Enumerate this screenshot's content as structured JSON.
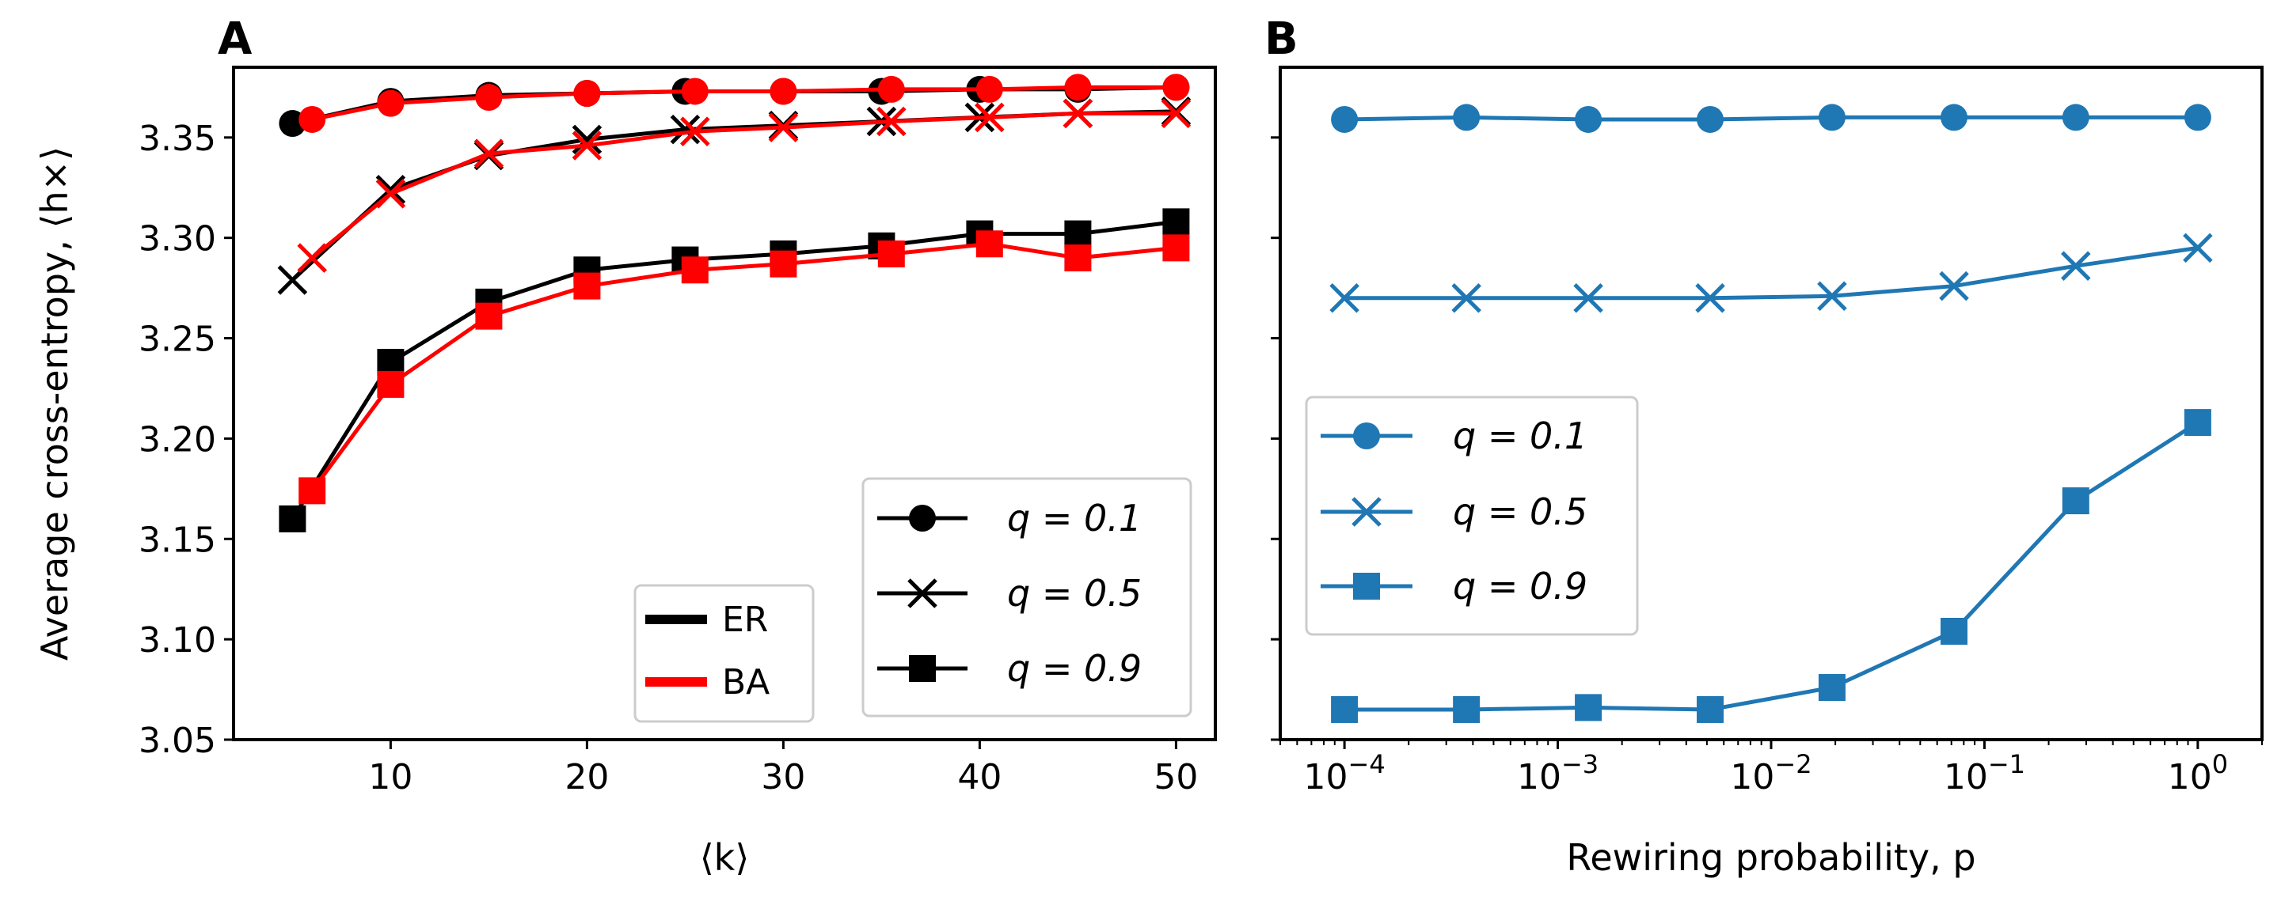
{
  "chart_data": [
    {
      "panel_label": "A",
      "type": "line",
      "xlabel": "⟨k⟩",
      "ylabel": "Average cross-entropy, ⟨h×⟩",
      "xlim": [
        2.0,
        52.0
      ],
      "ylim": [
        3.05,
        3.385
      ],
      "xticks": [
        10,
        20,
        30,
        40,
        50
      ],
      "xtick_labels": [
        "10",
        "20",
        "30",
        "40",
        "50"
      ],
      "yticks": [
        3.05,
        3.1,
        3.15,
        3.2,
        3.25,
        3.3,
        3.35
      ],
      "ytick_labels": [
        "3.05",
        "3.10",
        "3.15",
        "3.20",
        "3.25",
        "3.30",
        "3.35"
      ],
      "grid": false,
      "legend_model": {
        "placement": "lower-center",
        "entries": [
          {
            "label": "ER",
            "color": "#000000"
          },
          {
            "label": "BA",
            "color": "#ff0000"
          }
        ]
      },
      "legend_q": {
        "placement": "lower-right",
        "entries": [
          {
            "label": "q = 0.1",
            "marker": "circle"
          },
          {
            "label": "q = 0.5",
            "marker": "x"
          },
          {
            "label": "q = 0.9",
            "marker": "square"
          }
        ]
      },
      "series": [
        {
          "model": "ER",
          "q": "0.1",
          "marker": "circle",
          "color": "#000000",
          "x": [
            5,
            10,
            15,
            20,
            25,
            30,
            35,
            40,
            45,
            50
          ],
          "y": [
            3.357,
            3.368,
            3.371,
            3.372,
            3.373,
            3.373,
            3.373,
            3.374,
            3.374,
            3.375
          ]
        },
        {
          "model": "ER",
          "q": "0.5",
          "marker": "x",
          "color": "#000000",
          "x": [
            5,
            10,
            15,
            20,
            25,
            30,
            35,
            40,
            45,
            50
          ],
          "y": [
            3.279,
            3.324,
            3.341,
            3.349,
            3.354,
            3.356,
            3.358,
            3.36,
            3.362,
            3.363
          ]
        },
        {
          "model": "ER",
          "q": "0.9",
          "marker": "square",
          "color": "#000000",
          "x": [
            5,
            10,
            15,
            20,
            25,
            30,
            35,
            40,
            45,
            50
          ],
          "y": [
            3.16,
            3.238,
            3.268,
            3.284,
            3.289,
            3.292,
            3.296,
            3.302,
            3.302,
            3.308
          ]
        },
        {
          "model": "BA",
          "q": "0.1",
          "marker": "circle",
          "color": "#ff0000",
          "x": [
            6,
            10,
            15,
            20,
            25.5,
            30,
            35.5,
            40.5,
            45,
            50
          ],
          "y": [
            3.359,
            3.367,
            3.37,
            3.372,
            3.373,
            3.373,
            3.374,
            3.374,
            3.375,
            3.375
          ]
        },
        {
          "model": "BA",
          "q": "0.5",
          "marker": "x",
          "color": "#ff0000",
          "x": [
            6,
            10,
            15,
            20,
            25.5,
            30,
            35.5,
            40.5,
            45,
            50
          ],
          "y": [
            3.29,
            3.322,
            3.342,
            3.346,
            3.353,
            3.355,
            3.358,
            3.36,
            3.362,
            3.362
          ]
        },
        {
          "model": "BA",
          "q": "0.9",
          "marker": "square",
          "color": "#ff0000",
          "x": [
            6,
            10,
            15,
            20,
            25.5,
            30,
            35.5,
            40.5,
            45,
            50
          ],
          "y": [
            3.174,
            3.227,
            3.261,
            3.276,
            3.284,
            3.287,
            3.292,
            3.297,
            3.29,
            3.295
          ]
        }
      ]
    },
    {
      "panel_label": "B",
      "type": "line",
      "xlabel": "Rewiring probability, p",
      "xscale": "log",
      "xlim": [
        5e-05,
        2.0
      ],
      "ylim": [
        3.05,
        3.385
      ],
      "xticks": [
        0.0001,
        0.001,
        0.01,
        0.1,
        1
      ],
      "xtick_labels": [
        "10^-4",
        "10^-3",
        "10^-2",
        "10^-1",
        "10^0"
      ],
      "yticks": [
        3.05,
        3.1,
        3.15,
        3.2,
        3.25,
        3.3,
        3.35
      ],
      "ytick_labels_shown": false,
      "grid": false,
      "color": "#1f77b4",
      "legend": {
        "placement": "center-left",
        "entries": [
          {
            "label": "q = 0.1",
            "marker": "circle"
          },
          {
            "label": "q = 0.5",
            "marker": "x"
          },
          {
            "label": "q = 0.9",
            "marker": "square"
          }
        ]
      },
      "series": [
        {
          "q": "0.1",
          "marker": "circle",
          "x": [
            0.0001,
            0.000373,
            0.00139,
            0.00518,
            0.0193,
            0.072,
            0.268,
            1.0
          ],
          "y": [
            3.359,
            3.36,
            3.359,
            3.359,
            3.36,
            3.36,
            3.36,
            3.36
          ]
        },
        {
          "q": "0.5",
          "marker": "x",
          "x": [
            0.0001,
            0.000373,
            0.00139,
            0.00518,
            0.0193,
            0.072,
            0.268,
            1.0
          ],
          "y": [
            3.27,
            3.27,
            3.27,
            3.27,
            3.271,
            3.276,
            3.286,
            3.295
          ]
        },
        {
          "q": "0.9",
          "marker": "square",
          "x": [
            0.0001,
            0.000373,
            0.00139,
            0.00518,
            0.0193,
            0.072,
            0.268,
            1.0
          ],
          "y": [
            3.065,
            3.065,
            3.066,
            3.065,
            3.076,
            3.104,
            3.169,
            3.208
          ]
        }
      ]
    }
  ]
}
